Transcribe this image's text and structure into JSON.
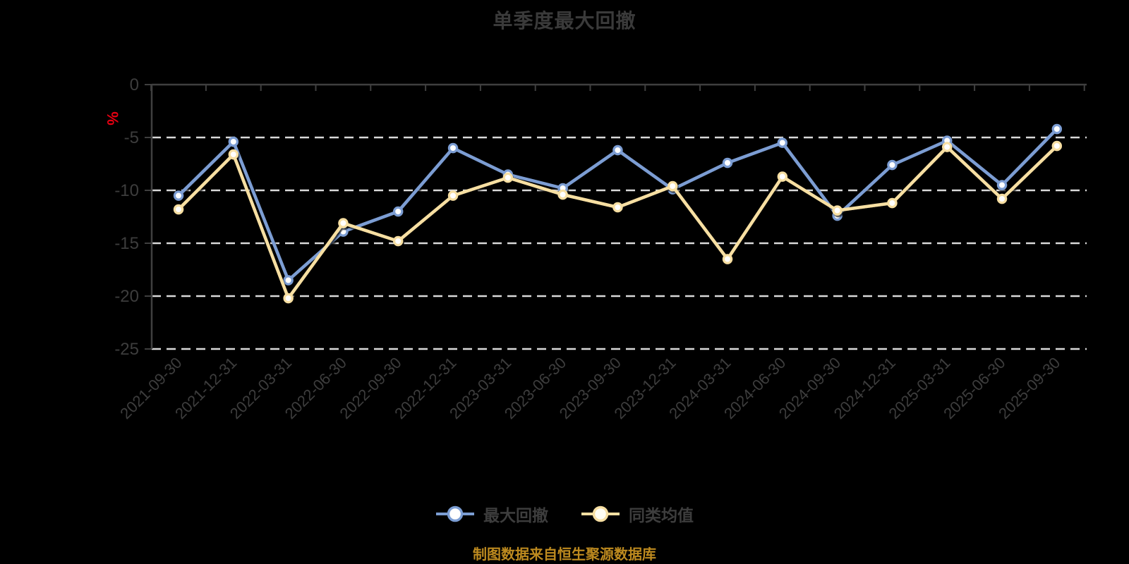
{
  "title": "单季度最大回撤",
  "footer": {
    "source_note": "制图数据来自恒生聚源数据库"
  },
  "axis": {
    "unit_label": "%",
    "unit_label_color": "#e60012",
    "y_tick_labels": [
      "0",
      "-5",
      "-10",
      "-15",
      "-20",
      "-25"
    ]
  },
  "legend": {
    "items": [
      {
        "label": "最大回撤",
        "color": "#7b9dd3"
      },
      {
        "label": "同类均值",
        "color": "#f7dfa2"
      }
    ]
  },
  "colors": {
    "background": "#000000",
    "title_text": "#3a3a3a",
    "axis_line": "#3f3f3f",
    "axis_text": "#3d3d3d",
    "gridline": "#d9d9d9",
    "marker_fill": "#ffffff",
    "footer_text": "#bd8a1f"
  },
  "chart_data": {
    "type": "line",
    "title": "单季度最大回撤",
    "categories": [
      "2021-09-30",
      "2021-12-31",
      "2022-03-31",
      "2022-06-30",
      "2022-09-30",
      "2022-12-31",
      "2023-03-31",
      "2023-06-30",
      "2023-09-30",
      "2023-12-31",
      "2024-03-31",
      "2024-06-30",
      "2024-09-30",
      "2024-12-31",
      "2025-03-31",
      "2025-06-30",
      "2025-09-30"
    ],
    "series": [
      {
        "name": "最大回撤",
        "color": "#7b9dd3",
        "values": [
          -10.5,
          -5.4,
          -18.5,
          -13.9,
          -12.0,
          -6.0,
          -8.5,
          -9.8,
          -6.2,
          -9.9,
          -7.4,
          -5.5,
          -12.4,
          -7.6,
          -5.3,
          -9.5,
          -4.2
        ]
      },
      {
        "name": "同类均值",
        "color": "#f7dfa2",
        "values": [
          -11.8,
          -6.6,
          -20.2,
          -13.1,
          -14.8,
          -10.5,
          -8.8,
          -10.4,
          -11.6,
          -9.6,
          -16.5,
          -8.7,
          -11.9,
          -11.2,
          -5.9,
          -10.8,
          -5.8
        ]
      }
    ],
    "xlabel": "",
    "ylabel": "%",
    "ylim": [
      -25,
      0
    ],
    "y_tick_step": 5,
    "grid": "horizontal-dashed",
    "legend_position": "bottom"
  }
}
